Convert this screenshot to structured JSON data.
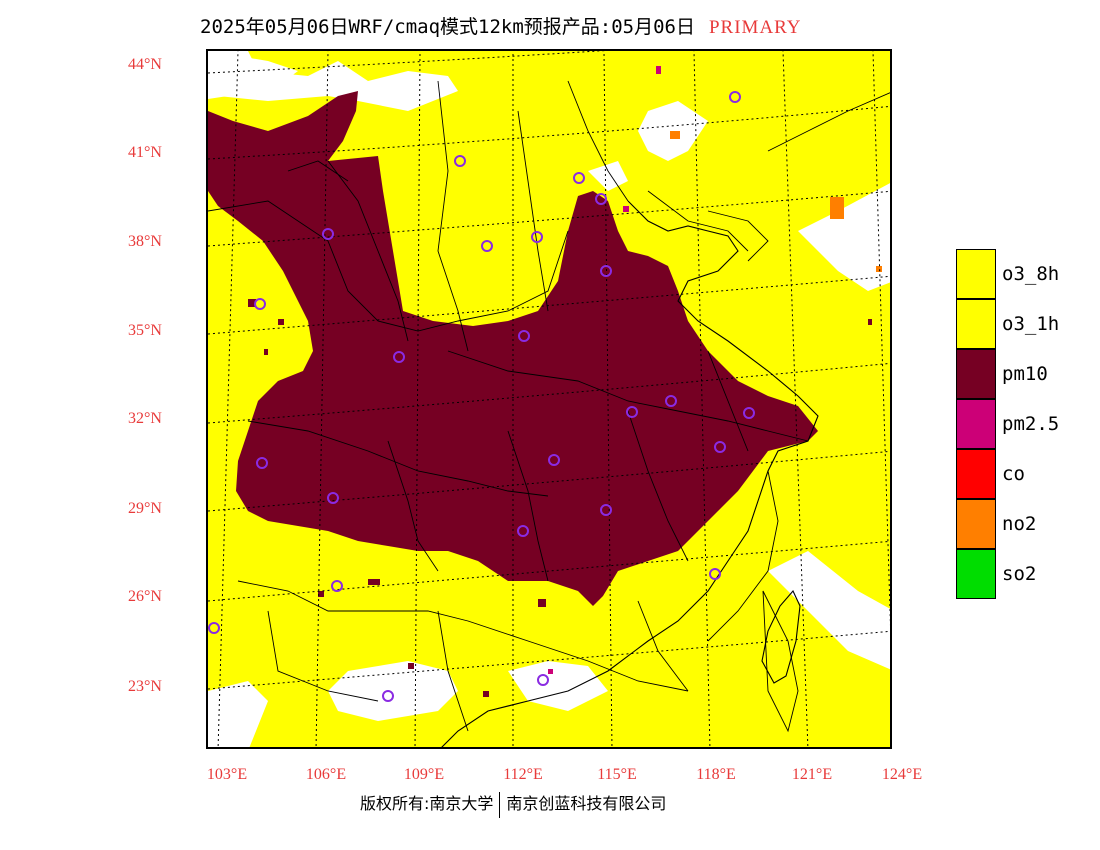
{
  "header": {
    "title": "2025年05月06日WRF/cmaq模式12km预报产品:05月06日",
    "mode": "PRIMARY"
  },
  "axes": {
    "lat_labels": [
      "44°N",
      "41°N",
      "38°N",
      "35°N",
      "32°N",
      "29°N",
      "26°N",
      "23°N"
    ],
    "lon_labels": [
      "103°E",
      "106°E",
      "109°E",
      "112°E",
      "115°E",
      "118°E",
      "121°E",
      "124°E"
    ]
  },
  "legend": {
    "items": [
      {
        "label": "o3_8h",
        "color": "#ffff00"
      },
      {
        "label": "o3_1h",
        "color": "#ffff00"
      },
      {
        "label": "pm10",
        "color": "#760023"
      },
      {
        "label": "pm2.5",
        "color": "#cc0077"
      },
      {
        "label": "co",
        "color": "#ff0000"
      },
      {
        "label": "no2",
        "color": "#ff7f00"
      },
      {
        "label": "so2",
        "color": "#00dd00"
      }
    ]
  },
  "footer": {
    "copyright_left": "版权所有:南京大学",
    "copyright_right": "南京创蓝科技有限公司"
  },
  "colors": {
    "background_field": "#ffff00",
    "pm10": "#760023",
    "no_data": "#ffffff",
    "station_marker": "#8a2be2",
    "axis_label": "#e83a3a"
  }
}
